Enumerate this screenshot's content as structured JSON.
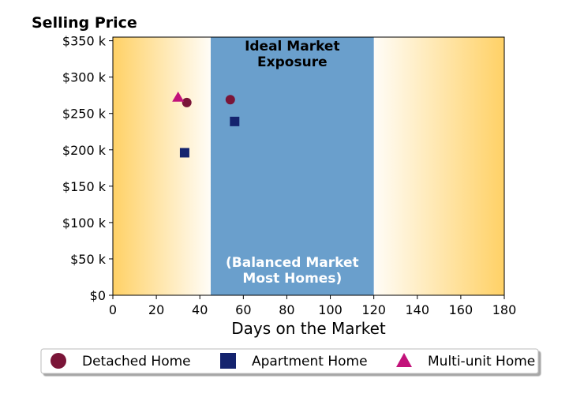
{
  "chart_data": {
    "type": "scatter",
    "title": "Selling Price",
    "xlabel": "Days on the Market",
    "ylabel": "",
    "xlim": [
      0,
      180
    ],
    "ylim": [
      0,
      355000
    ],
    "x_ticks": [
      0,
      20,
      40,
      60,
      80,
      100,
      120,
      140,
      160,
      180
    ],
    "x_tick_labels": [
      "0",
      "20",
      "40",
      "60",
      "80",
      "100",
      "120",
      "140",
      "160",
      "180"
    ],
    "y_ticks": [
      0,
      50000,
      100000,
      150000,
      200000,
      250000,
      300000,
      350000
    ],
    "y_tick_labels": [
      "$0",
      "$50 k",
      "$100 k",
      "$150 k",
      "$200 k",
      "$250 k",
      "$300 k",
      "$350 k"
    ],
    "grid": false,
    "legend_position": "bottom",
    "band": {
      "x_start": 45,
      "x_end": 120,
      "color": "#6a9fcc",
      "label_top_lines": [
        "Ideal Market",
        "Exposure"
      ],
      "label_bottom_lines": [
        "(Balanced Market",
        "Most Homes)"
      ]
    },
    "gradient_color": "#ffd166",
    "series": [
      {
        "name": "Detached Home",
        "marker": "circle",
        "color": "#7a1538",
        "points": [
          {
            "x": 34,
            "y": 265000
          },
          {
            "x": 54,
            "y": 269000
          }
        ]
      },
      {
        "name": "Apartment Home",
        "marker": "square",
        "color": "#14236e",
        "points": [
          {
            "x": 33,
            "y": 196000
          },
          {
            "x": 56,
            "y": 239000
          }
        ]
      },
      {
        "name": "Multi-unit Home",
        "marker": "triangle",
        "color": "#c2127a",
        "points": [
          {
            "x": 30,
            "y": 272000
          }
        ]
      }
    ]
  }
}
